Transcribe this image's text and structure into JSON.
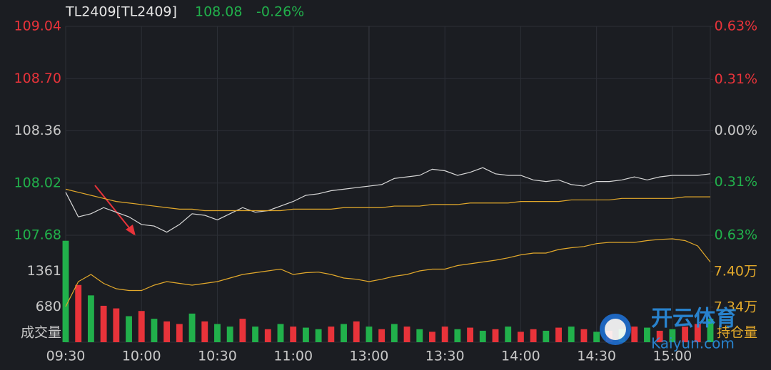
{
  "header": {
    "symbol": "TL2409[TL2409]",
    "price": "108.08",
    "change": "-0.26%"
  },
  "watermark": {
    "brand": "开云体育",
    "site": "Kaiyun.com"
  },
  "chart_data": [
    {
      "type": "line",
      "categories": [
        "09:30",
        null,
        null,
        null,
        null,
        null,
        "10:00",
        null,
        null,
        null,
        null,
        null,
        "10:30",
        null,
        null,
        null,
        null,
        null,
        "11:00",
        null,
        null,
        null,
        null,
        null,
        "13:00",
        null,
        null,
        null,
        null,
        null,
        "13:30",
        null,
        null,
        null,
        null,
        null,
        "14:00",
        null,
        null,
        null,
        null,
        null,
        "14:30",
        null,
        null,
        null,
        null,
        null,
        "15:00",
        null,
        null,
        null
      ],
      "series": [
        {
          "color": "#d8d8d8",
          "values": [
            107.96,
            107.8,
            107.82,
            107.86,
            107.83,
            107.8,
            107.75,
            107.74,
            107.7,
            107.75,
            107.82,
            107.81,
            107.78,
            107.82,
            107.86,
            107.83,
            107.84,
            107.87,
            107.9,
            107.94,
            107.95,
            107.97,
            107.98,
            107.99,
            108.0,
            108.01,
            108.05,
            108.06,
            108.07,
            108.11,
            108.1,
            108.07,
            108.09,
            108.12,
            108.08,
            108.07,
            108.07,
            108.04,
            108.03,
            108.04,
            108.01,
            108.0,
            108.03,
            108.03,
            108.04,
            108.06,
            108.04,
            108.06,
            108.07,
            108.07,
            108.07,
            108.08
          ]
        },
        {
          "color": "#e3a92b",
          "values": [
            107.98,
            107.96,
            107.94,
            107.92,
            107.9,
            107.89,
            107.88,
            107.87,
            107.86,
            107.85,
            107.85,
            107.84,
            107.84,
            107.84,
            107.84,
            107.84,
            107.84,
            107.84,
            107.85,
            107.85,
            107.85,
            107.85,
            107.86,
            107.86,
            107.86,
            107.86,
            107.87,
            107.87,
            107.87,
            107.88,
            107.88,
            107.88,
            107.89,
            107.89,
            107.89,
            107.89,
            107.9,
            107.9,
            107.9,
            107.9,
            107.91,
            107.91,
            107.91,
            107.91,
            107.92,
            107.92,
            107.92,
            107.92,
            107.92,
            107.93,
            107.93,
            107.93
          ]
        }
      ],
      "ylim": [
        107.68,
        109.04
      ],
      "yticks": [
        109.04,
        {
          "value": 108.7,
          "label": "108.70"
        },
        108.36,
        108.02,
        107.68
      ],
      "y2lim": [
        -0.63,
        0.63
      ],
      "y2ticks": [
        {
          "value": 0.63,
          "label": "0.63%"
        },
        {
          "value": 0.31,
          "label": "0.31%"
        },
        {
          "value": 0,
          "label": "0.00%"
        },
        {
          "value": -0.31,
          "label": "0.31%"
        },
        {
          "value": -0.63,
          "label": "0.63%"
        }
      ]
    },
    {
      "type": "bar",
      "ylabel": "成交量",
      "y2label": "持仓量",
      "ylim": [
        0,
        2056
      ],
      "yticks": [
        1361,
        680
      ],
      "y2lim": [
        7.281,
        7.461
      ],
      "y2ticks": [
        {
          "value": 7.4,
          "label": "7.40万"
        },
        {
          "value": 7.34,
          "label": "7.34万"
        }
      ],
      "series": [
        {
          "values": [
            1950,
            1100,
            900,
            700,
            650,
            500,
            600,
            450,
            400,
            350,
            550,
            400,
            350,
            300,
            450,
            300,
            250,
            350,
            300,
            280,
            250,
            300,
            350,
            400,
            300,
            250,
            350,
            300,
            250,
            200,
            300,
            250,
            280,
            220,
            250,
            300,
            200,
            250,
            220,
            280,
            300,
            250,
            200,
            220,
            250,
            300,
            280,
            220,
            250,
            300,
            350,
            450
          ],
          "colors": [
            "#21b04b",
            "#e8333a",
            "#21b04b",
            "#e8333a",
            "#e8333a",
            "#21b04b",
            "#e8333a",
            "#21b04b",
            "#e8333a",
            "#e8333a",
            "#21b04b",
            "#e8333a",
            "#21b04b",
            "#21b04b",
            "#e8333a",
            "#21b04b",
            "#e8333a",
            "#21b04b",
            "#e8333a",
            "#21b04b",
            "#21b04b",
            "#e8333a",
            "#21b04b",
            "#e8333a",
            "#21b04b",
            "#e8333a",
            "#21b04b",
            "#e8333a",
            "#21b04b",
            "#e8333a",
            "#e8333a",
            "#21b04b",
            "#e8333a",
            "#21b04b",
            "#e8333a",
            "#21b04b",
            "#e8333a",
            "#e8333a",
            "#21b04b",
            "#e8333a",
            "#21b04b",
            "#e8333a",
            "#21b04b",
            "#e8333a",
            "#21b04b",
            "#e8333a",
            "#21b04b",
            "#e8333a",
            "#21b04b",
            "#e8333a",
            "#e8333a",
            "#21b04b"
          ]
        },
        {
          "type": "line",
          "axis": "y2",
          "color": "#e3a92b",
          "values": [
            7.341,
            7.383,
            7.395,
            7.38,
            7.371,
            7.368,
            7.368,
            7.377,
            7.383,
            7.38,
            7.377,
            7.38,
            7.383,
            7.389,
            7.395,
            7.398,
            7.401,
            7.404,
            7.395,
            7.398,
            7.399,
            7.395,
            7.389,
            7.387,
            7.383,
            7.387,
            7.392,
            7.395,
            7.401,
            7.404,
            7.404,
            7.41,
            7.413,
            7.416,
            7.419,
            7.423,
            7.428,
            7.431,
            7.431,
            7.437,
            7.44,
            7.442,
            7.447,
            7.449,
            7.449,
            7.449,
            7.452,
            7.454,
            7.455,
            7.452,
            7.443,
            7.416
          ]
        }
      ]
    }
  ]
}
